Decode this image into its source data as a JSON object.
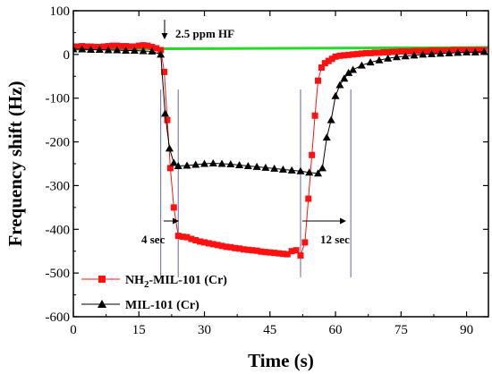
{
  "chart_data": {
    "type": "line",
    "xlabel": "Time (s)",
    "ylabel": "Frequency shift (Hz)",
    "xlim": [
      0,
      95
    ],
    "ylim": [
      -600,
      100
    ],
    "xticks": [
      0,
      15,
      30,
      45,
      60,
      75,
      90
    ],
    "yticks": [
      -600,
      -500,
      -400,
      -300,
      -200,
      -100,
      0,
      100
    ],
    "grid": false,
    "legend_position": "bottom-left",
    "colors": {
      "nh2": "#ff1111",
      "mil": "#000000",
      "baseline": "#22dd22",
      "guide": "#6666aa"
    },
    "annotations": {
      "hf_label": "2.5 ppm HF",
      "response_label": "4 sec",
      "recovery_label": "12 sec"
    },
    "baseline_series": {
      "x": [
        0,
        95
      ],
      "y": [
        12,
        16
      ]
    },
    "series": [
      {
        "name": "NH2-MIL-101 (Cr)",
        "legend_main": "NH",
        "legend_sub": "2",
        "legend_rest": "-MIL-101 (Cr)",
        "marker": "square",
        "x": [
          0,
          1,
          2,
          3,
          4,
          5,
          6,
          7,
          8,
          9,
          10,
          11,
          12,
          13,
          14,
          15,
          16,
          17,
          18,
          19,
          20,
          20.8,
          21.5,
          22.2,
          23,
          24,
          25,
          26,
          27,
          28,
          29,
          30,
          31,
          32,
          33,
          34,
          35,
          36,
          37,
          38,
          39,
          40,
          41,
          42,
          43,
          44,
          45,
          46,
          47,
          48,
          49,
          50,
          51,
          52,
          53,
          53.8,
          54.6,
          55.3,
          56,
          56.8,
          57.6,
          58.4,
          59.2,
          60,
          61,
          62,
          63,
          64,
          65,
          66,
          67,
          68,
          69,
          70,
          71,
          72,
          73,
          74,
          75,
          76,
          77,
          78,
          79,
          80,
          81,
          82,
          83,
          84,
          85,
          86,
          87,
          88,
          89,
          90,
          91,
          92,
          93,
          94
        ],
        "y": [
          18,
          18,
          19,
          18,
          18,
          17,
          17,
          18,
          19,
          20,
          20,
          19,
          19,
          18,
          18,
          20,
          21,
          20,
          17,
          14,
          10,
          -40,
          -150,
          -260,
          -350,
          -415,
          -417,
          -418,
          -422,
          -425,
          -428,
          -430,
          -432,
          -434,
          -436,
          -438,
          -440,
          -441,
          -443,
          -444,
          -446,
          -447,
          -448,
          -449,
          -451,
          -452,
          -453,
          -454,
          -455,
          -456,
          -457,
          -450,
          -448,
          -460,
          -430,
          -330,
          -230,
          -140,
          -60,
          -30,
          -20,
          -15,
          -10,
          -5,
          -3,
          -2,
          -1,
          0,
          1,
          2,
          3,
          3,
          4,
          4,
          5,
          5,
          6,
          6,
          7,
          7,
          7,
          8,
          8,
          8,
          8,
          9,
          9,
          9,
          9,
          9,
          10,
          10,
          10,
          10,
          10,
          10,
          10,
          10
        ]
      },
      {
        "name": "MIL-101 (Cr)",
        "marker": "triangle",
        "x": [
          0,
          2,
          4,
          6,
          8,
          10,
          12,
          14,
          16,
          18,
          20,
          21,
          22,
          23,
          24,
          26,
          28,
          30,
          32,
          34,
          36,
          38,
          40,
          42,
          44,
          46,
          48,
          50,
          52,
          54,
          56,
          57,
          58,
          59,
          60,
          61,
          62,
          63,
          64,
          66,
          68,
          70,
          72,
          74,
          76,
          78,
          80,
          82,
          84,
          86,
          88,
          90,
          92,
          94
        ],
        "y": [
          12,
          12,
          11,
          11,
          10,
          10,
          9,
          9,
          8,
          7,
          0,
          -135,
          -215,
          -248,
          -255,
          -254,
          -252,
          -250,
          -249,
          -250,
          -251,
          -253,
          -255,
          -257,
          -259,
          -261,
          -263,
          -265,
          -267,
          -270,
          -272,
          -260,
          -190,
          -150,
          -95,
          -70,
          -55,
          -42,
          -35,
          -25,
          -18,
          -13,
          -9,
          -6,
          -4,
          -2,
          0,
          1,
          2,
          3,
          4,
          5,
          5,
          6
        ]
      }
    ],
    "guides": {
      "x": [
        20,
        24,
        52,
        63.5
      ]
    }
  }
}
